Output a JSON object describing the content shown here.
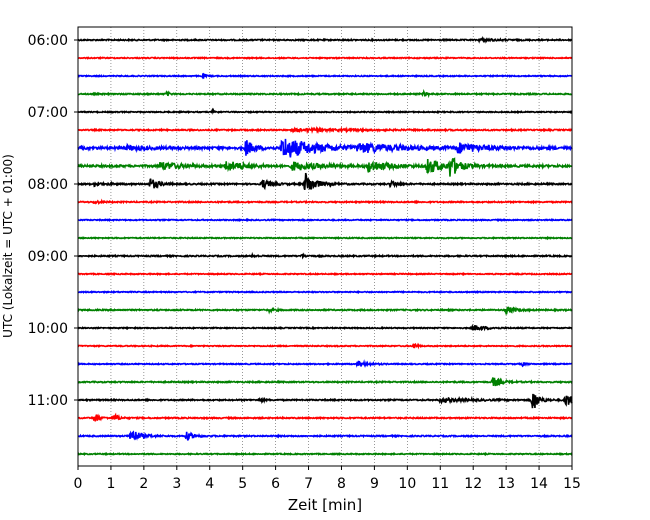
{
  "chart_data": {
    "type": "line",
    "title": "",
    "xlabel": "Zeit  [min]",
    "ylabel": "UTC (Lokalzeit = UTC + 01:00)",
    "xlim": [
      0,
      15
    ],
    "x_ticks": [
      "0",
      "1",
      "2",
      "3",
      "4",
      "5",
      "6",
      "7",
      "8",
      "9",
      "10",
      "11",
      "12",
      "13",
      "14",
      "15"
    ],
    "y_ticks": [
      {
        "label": "06:00",
        "trace": 0
      },
      {
        "label": "07:00",
        "trace": 4
      },
      {
        "label": "08:00",
        "trace": 8
      },
      {
        "label": "09:00",
        "trace": 12
      },
      {
        "label": "10:00",
        "trace": 16
      },
      {
        "label": "11:00",
        "trace": 20
      }
    ],
    "grid": "vertical dotted at each minute",
    "trace_minutes": 15,
    "color_cycle": [
      "#000000",
      "#ff0000",
      "#0000ff",
      "#008000"
    ],
    "traces": [
      {
        "start": "06:00",
        "noise": 0.6,
        "events": [
          {
            "t": 12.2,
            "amp": 1.2,
            "dur": 0.8
          }
        ]
      },
      {
        "start": "06:15",
        "noise": 0.5,
        "events": []
      },
      {
        "start": "06:30",
        "noise": 0.5,
        "events": [
          {
            "t": 3.8,
            "amp": 2.5,
            "dur": 0.1
          }
        ]
      },
      {
        "start": "06:45",
        "noise": 0.6,
        "events": [
          {
            "t": 2.7,
            "amp": 2.5,
            "dur": 0.1
          },
          {
            "t": 10.5,
            "amp": 3,
            "dur": 0.15
          }
        ]
      },
      {
        "start": "07:00",
        "noise": 0.5,
        "events": [
          {
            "t": 4.1,
            "amp": 2.5,
            "dur": 0.1
          }
        ]
      },
      {
        "start": "07:15",
        "noise": 0.6,
        "events": [
          {
            "t": 6.5,
            "amp": 1,
            "dur": 4
          }
        ]
      },
      {
        "start": "07:30",
        "noise": 1.2,
        "events": [
          {
            "t": 5.1,
            "amp": 8,
            "dur": 0.4
          },
          {
            "t": 6.2,
            "amp": 11,
            "dur": 1.8
          },
          {
            "t": 8.5,
            "amp": 4,
            "dur": 2.5
          },
          {
            "t": 11.5,
            "amp": 5,
            "dur": 1.3
          },
          {
            "t": 1.5,
            "amp": 2,
            "dur": 1
          }
        ]
      },
      {
        "start": "07:45",
        "noise": 1.0,
        "events": [
          {
            "t": 2.5,
            "amp": 4,
            "dur": 1
          },
          {
            "t": 4.5,
            "amp": 5,
            "dur": 1
          },
          {
            "t": 6.5,
            "amp": 4,
            "dur": 1.5
          },
          {
            "t": 8.8,
            "amp": 6,
            "dur": 1
          },
          {
            "t": 10.6,
            "amp": 7,
            "dur": 1
          },
          {
            "t": 11.3,
            "amp": 10,
            "dur": 0.4
          }
        ]
      },
      {
        "start": "08:00",
        "noise": 0.7,
        "events": [
          {
            "t": 2.2,
            "amp": 6,
            "dur": 0.4
          },
          {
            "t": 5.6,
            "amp": 5,
            "dur": 0.4
          },
          {
            "t": 6.9,
            "amp": 12,
            "dur": 0.5
          },
          {
            "t": 9.5,
            "amp": 3,
            "dur": 0.3
          },
          {
            "t": 0.5,
            "amp": 2,
            "dur": 0.5
          }
        ]
      },
      {
        "start": "08:15",
        "noise": 0.6,
        "events": [
          {
            "t": 0.5,
            "amp": 1.5,
            "dur": 0.3
          }
        ]
      },
      {
        "start": "08:30",
        "noise": 0.5,
        "events": []
      },
      {
        "start": "08:45",
        "noise": 0.5,
        "events": []
      },
      {
        "start": "09:00",
        "noise": 0.6,
        "events": [
          {
            "t": 5.3,
            "amp": 1.5,
            "dur": 0.2
          },
          {
            "t": 6.8,
            "amp": 1.5,
            "dur": 0.2
          }
        ]
      },
      {
        "start": "09:15",
        "noise": 0.5,
        "events": []
      },
      {
        "start": "09:30",
        "noise": 0.5,
        "events": []
      },
      {
        "start": "09:45",
        "noise": 0.6,
        "events": [
          {
            "t": 5.8,
            "amp": 1.5,
            "dur": 0.3
          },
          {
            "t": 13.0,
            "amp": 4,
            "dur": 0.4
          }
        ]
      },
      {
        "start": "10:00",
        "noise": 0.5,
        "events": [
          {
            "t": 12.0,
            "amp": 3,
            "dur": 0.6
          }
        ]
      },
      {
        "start": "10:15",
        "noise": 0.5,
        "events": [
          {
            "t": 10.2,
            "amp": 4,
            "dur": 0.1
          }
        ]
      },
      {
        "start": "10:30",
        "noise": 0.5,
        "events": [
          {
            "t": 8.5,
            "amp": 3,
            "dur": 0.5
          },
          {
            "t": 13.5,
            "amp": 3,
            "dur": 0.1
          }
        ]
      },
      {
        "start": "10:45",
        "noise": 0.6,
        "events": [
          {
            "t": 12.6,
            "amp": 5,
            "dur": 0.4
          }
        ]
      },
      {
        "start": "11:00",
        "noise": 0.6,
        "events": [
          {
            "t": 5.5,
            "amp": 1.5,
            "dur": 0.2
          },
          {
            "t": 11.0,
            "amp": 2,
            "dur": 1.5
          },
          {
            "t": 13.8,
            "amp": 12,
            "dur": 0.3
          },
          {
            "t": 14.8,
            "amp": 7,
            "dur": 0.4
          }
        ]
      },
      {
        "start": "11:15",
        "noise": 0.6,
        "events": [
          {
            "t": 0.5,
            "amp": 5,
            "dur": 0.2
          },
          {
            "t": 1.1,
            "amp": 4,
            "dur": 0.2
          }
        ]
      },
      {
        "start": "11:30",
        "noise": 0.6,
        "events": [
          {
            "t": 1.6,
            "amp": 7,
            "dur": 0.5
          },
          {
            "t": 3.3,
            "amp": 4,
            "dur": 0.4
          }
        ]
      },
      {
        "start": "11:45",
        "noise": 0.5,
        "events": []
      }
    ]
  }
}
